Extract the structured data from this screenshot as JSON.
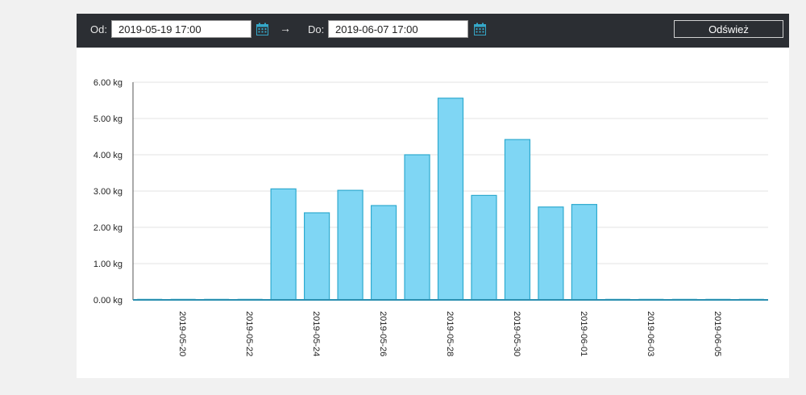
{
  "toolbar": {
    "from_label": "Od:",
    "from_value": "2019-05-19 17:00",
    "arrow": "→",
    "to_label": "Do:",
    "to_value": "2019-06-07 17:00",
    "refresh_label": "Odśwież",
    "calendar_icon": "calendar-icon",
    "accent": "#35a7c8"
  },
  "chart_data": {
    "type": "bar",
    "categories": [
      "2019-05-19",
      "2019-05-20",
      "2019-05-21",
      "2019-05-22",
      "2019-05-23",
      "2019-05-24",
      "2019-05-25",
      "2019-05-26",
      "2019-05-27",
      "2019-05-28",
      "2019-05-29",
      "2019-05-30",
      "2019-05-31",
      "2019-06-01",
      "2019-06-02",
      "2019-06-03",
      "2019-06-04",
      "2019-06-05",
      "2019-06-06"
    ],
    "tick_labels": [
      "2019-05-20",
      "2019-05-22",
      "2019-05-24",
      "2019-05-26",
      "2019-05-28",
      "2019-05-30",
      "2019-06-01",
      "2019-06-03",
      "2019-06-05"
    ],
    "values": [
      0,
      0,
      0,
      0,
      3.06,
      2.4,
      3.02,
      2.6,
      4.0,
      5.56,
      2.88,
      4.42,
      2.56,
      2.63,
      0,
      0,
      0,
      0,
      0
    ],
    "y_ticks": [
      "0.00 kg",
      "1.00 kg",
      "2.00 kg",
      "3.00 kg",
      "4.00 kg",
      "5.00 kg",
      "6.00 kg"
    ],
    "ylim": [
      0,
      6
    ],
    "grid": true,
    "bar_fill": "#7fd6f4",
    "bar_stroke": "#2eaacf",
    "axis_color": "#2b8fb0"
  }
}
